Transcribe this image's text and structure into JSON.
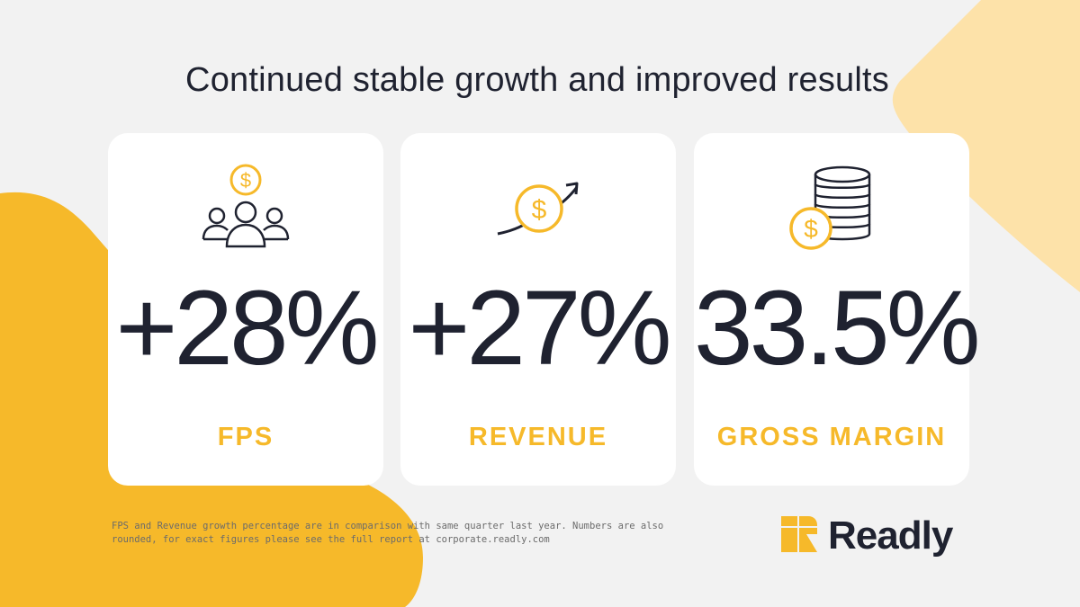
{
  "title": "Continued stable growth and improved results",
  "colors": {
    "accent": "#f6b92a",
    "accent_light": "#fde2a9",
    "text": "#1f2230",
    "background": "#f2f2f2"
  },
  "cards": [
    {
      "icon": "people-dollar-icon",
      "value": "+28%",
      "label": "FPS"
    },
    {
      "icon": "dollar-growth-arrow-icon",
      "value": "+27%",
      "label": "REVENUE"
    },
    {
      "icon": "coin-stack-dollar-icon",
      "value": "33.5%",
      "label": "GROSS MARGIN"
    }
  ],
  "footnote": {
    "line1": "FPS and Revenue growth percentage are in comparison with same quarter last year. Numbers are also",
    "line2": "rounded, for exact figures please see the full report at corporate.readly.com"
  },
  "brand": {
    "name": "Readly",
    "logo_icon": "readly-logo-icon"
  }
}
